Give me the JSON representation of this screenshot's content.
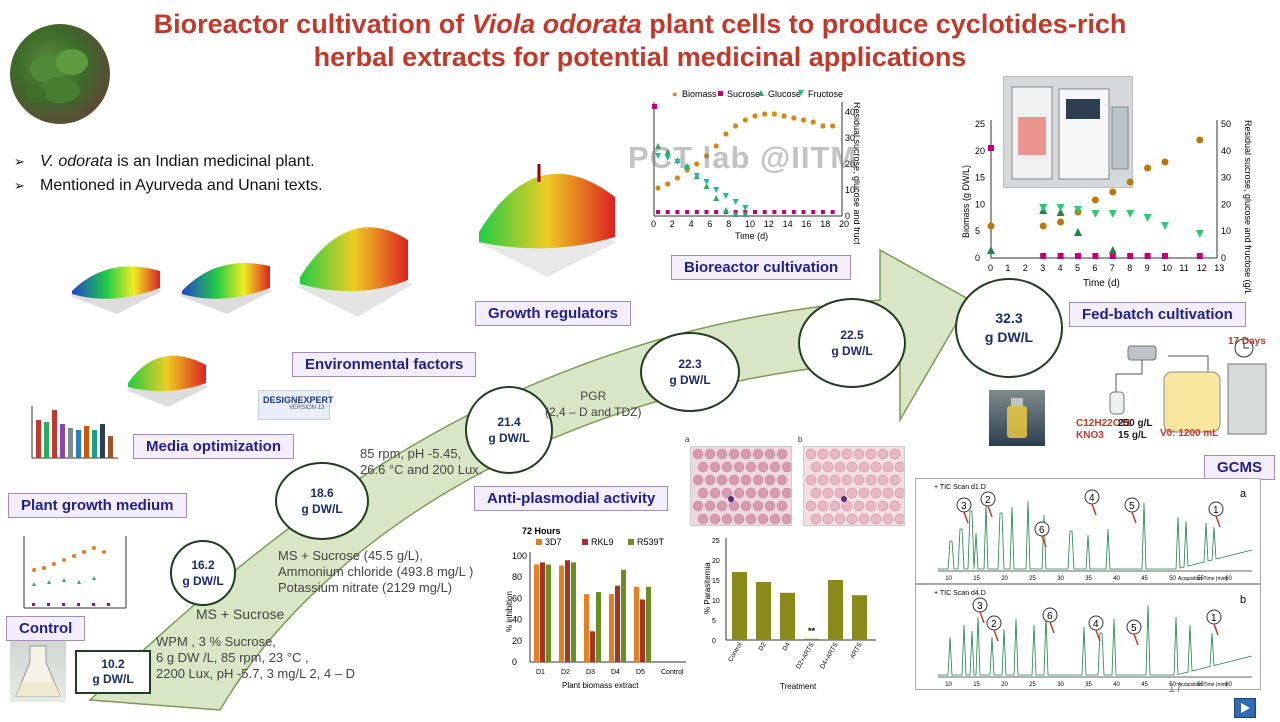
{
  "title": {
    "line1_before": "Bioreactor cultivation of ",
    "line1_italic": "Viola odorata",
    "line1_after": " plant cells to produce cyclotides-rich",
    "line2": "herbal extracts for potential medicinal applications"
  },
  "bullets": [
    {
      "italic": "V. odorata",
      "text": " is an Indian medicinal plant."
    },
    {
      "italic": "",
      "text": "Mentioned in Ayurveda and Unani texts."
    }
  ],
  "labels": {
    "control": "Control",
    "plant_growth_medium": "Plant growth medium",
    "media_optimization": "Media optimization",
    "environmental_factors": "Environmental factors",
    "growth_regulators": "Growth regulators",
    "bioreactor_cultivation": "Bioreactor cultivation",
    "fed_batch_cultivation": "Fed-batch cultivation",
    "anti_plasmodial_activity": "Anti-plasmodial activity",
    "gcms": "GCMS"
  },
  "nodes": {
    "n1": {
      "value": "10.2",
      "unit": "g DW/L"
    },
    "n2": {
      "value": "16.2",
      "unit": "g DW/L"
    },
    "n3": {
      "value": "18.6",
      "unit": "g DW/L"
    },
    "n4": {
      "value": "21.4",
      "unit": "g DW/L"
    },
    "n5": {
      "value": "22.3",
      "unit": "g DW/L"
    },
    "n6": {
      "value": "22.5",
      "unit": "g DW/L"
    },
    "n7": {
      "value": "32.3",
      "unit": "g DW/L"
    }
  },
  "notes": {
    "control": [
      "WPM , 3 % Sucrose,",
      "6 g DW /L, 85 rpm, 23 °C ,",
      "2200 Lux, pH -5.7, 3 mg/L 2, 4 – D"
    ],
    "ms_sucrose": "MS + Sucrose",
    "media": [
      "MS + Sucrose (45.5 g/L),",
      "Ammonium chloride  (493.8 mg/L )",
      "Potassium nitrate (2129 mg/L)"
    ],
    "env": [
      "85 rpm, pH -5.45,",
      "26.6 °C and 200 Lux."
    ],
    "pgr": [
      "PGR",
      "(2,4 – D and TDZ)"
    ]
  },
  "watermark": "PCT lab @IITM",
  "designexpert": {
    "name": "DESIGNEXPERT",
    "version": "VERSION 13"
  },
  "fedbatch_setup": {
    "days": "17 Days",
    "feed_formula": "C12H22O11",
    "feed_salt": "KNO3",
    "feed_conc1": "250 g/L",
    "feed_conc2": "15 g/L",
    "v0": "V0: 1200 mL"
  },
  "bioreactor_chart": {
    "legend": [
      "Biomass",
      "Sucrose",
      "Glucose",
      "Fructose"
    ],
    "xlabel": "Time (d)",
    "ylabel_right": "Residual sucrose, glucose and fructose (g/L)",
    "x_ticks": [
      "0",
      "2",
      "4",
      "6",
      "8",
      "10",
      "12",
      "14",
      "16",
      "18",
      "20"
    ],
    "y_ticks_right": [
      "40",
      "30",
      "20",
      "10",
      "0"
    ]
  },
  "fedbatch_chart": {
    "xlabel": "Time (d)",
    "ylabel_left": "Biomass (g DW/L)",
    "ylabel_right": "Residual sucrose, glucose and fructose (g/L)",
    "x_ticks": [
      "0",
      "1",
      "2",
      "3",
      "4",
      "5",
      "6",
      "7",
      "8",
      "9",
      "10",
      "11",
      "12",
      "13"
    ],
    "y_ticks_left": [
      "25",
      "20",
      "15",
      "10",
      "5",
      "0"
    ],
    "y_ticks_right": [
      "50",
      "40",
      "30",
      "20",
      "10",
      "0"
    ]
  },
  "antiplasmodial_chart": {
    "title": "72 Hours",
    "legend": [
      "3D7",
      "RKL9",
      "R539T"
    ],
    "xlabel": "Plant biomass extract",
    "ylabel": "% inhibition",
    "categories": [
      "D1",
      "D2",
      "D3",
      "D4",
      "D5",
      "Control"
    ],
    "y_ticks": [
      "100",
      "80",
      "60",
      "40",
      "20",
      "0"
    ]
  },
  "parasitemia_chart": {
    "ylabel": "% Parasitemia",
    "xlabel": "Treatment",
    "categories": [
      "Control",
      "D2",
      "D4",
      "D2+ARTS",
      "D4+ARTS",
      "ARTS"
    ],
    "y_ticks": [
      "25",
      "20",
      "15",
      "10",
      "5",
      "0"
    ],
    "sig": "**"
  },
  "gcms": {
    "scan_a": "+ TIC Scan d1.D",
    "scan_b": "+ TIC Scan d4.D",
    "panel_a": "a",
    "panel_b": "b",
    "markers": [
      "1",
      "2",
      "3",
      "4",
      "5",
      "6"
    ],
    "xlabel": "Acquisition Time (min)"
  },
  "micrograph_labels": [
    "a",
    "b"
  ],
  "page_number": "17"
}
